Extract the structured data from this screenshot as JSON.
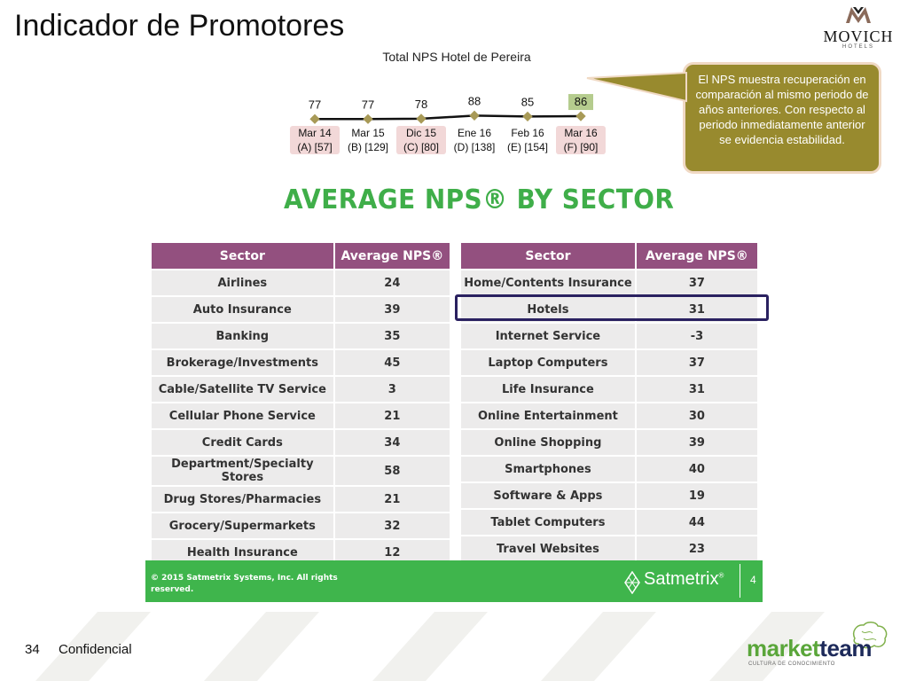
{
  "header": {
    "title": "Indicador de Promotores",
    "logo_text": "MOVICH",
    "logo_sub": "HOTELS"
  },
  "chart_data": {
    "type": "line",
    "title": "Total NPS Hotel de Pereira",
    "categories": [
      "Mar 14 (A) [57]",
      "Mar 15 (B) [129]",
      "Dic 15 (C) [80]",
      "Ene 16 (D) [138]",
      "Feb 16 (E) [154]",
      "Mar 16 (F) [90]"
    ],
    "category_lines": [
      [
        "Mar 14",
        "(A) [57]"
      ],
      [
        "Mar 15",
        "(B) [129]"
      ],
      [
        "Dic 15",
        "(C) [80]"
      ],
      [
        "Ene 16",
        "(D) [138]"
      ],
      [
        "Feb 16",
        "(E) [154]"
      ],
      [
        "Mar 16",
        "(F) [90]"
      ]
    ],
    "highlighted_categories": [
      0,
      2,
      5
    ],
    "values": [
      77,
      77,
      78,
      88,
      85,
      86
    ],
    "highlighted_value_index": 5,
    "ylim": [
      0,
      100
    ],
    "line_color": "#111111",
    "marker_color": "#a89a57",
    "highlight_color": "#b5cc8e"
  },
  "callout": {
    "text": "El NPS muestra recuperación en comparación al mismo periodo de años anteriores. Con respecto al periodo inmediatamente anterior se evidencia estabilidad."
  },
  "sector": {
    "heading": "AVERAGE NPS® BY SECTOR",
    "col_sector": "Sector",
    "col_nps": "Average NPS®",
    "left_rows": [
      {
        "sector": "Airlines",
        "nps": "24"
      },
      {
        "sector": "Auto Insurance",
        "nps": "39"
      },
      {
        "sector": "Banking",
        "nps": "35"
      },
      {
        "sector": "Brokerage/Investments",
        "nps": "45"
      },
      {
        "sector": "Cable/Satellite TV Service",
        "nps": "3"
      },
      {
        "sector": "Cellular Phone Service",
        "nps": "21"
      },
      {
        "sector": "Credit Cards",
        "nps": "34"
      },
      {
        "sector": "Department/Specialty Stores",
        "nps": "58"
      },
      {
        "sector": "Drug Stores/Pharmacies",
        "nps": "21"
      },
      {
        "sector": "Grocery/Supermarkets",
        "nps": "32"
      },
      {
        "sector": "Health Insurance",
        "nps": "12"
      }
    ],
    "right_rows": [
      {
        "sector": "Home/Contents Insurance",
        "nps": "37"
      },
      {
        "sector": "Hotels",
        "nps": "31"
      },
      {
        "sector": "Internet Service",
        "nps": "-3"
      },
      {
        "sector": "Laptop Computers",
        "nps": "37"
      },
      {
        "sector": "Life Insurance",
        "nps": "31"
      },
      {
        "sector": "Online Entertainment",
        "nps": "30"
      },
      {
        "sector": "Online Shopping",
        "nps": "39"
      },
      {
        "sector": "Smartphones",
        "nps": "40"
      },
      {
        "sector": "Software & Apps",
        "nps": "19"
      },
      {
        "sector": "Tablet Computers",
        "nps": "44"
      },
      {
        "sector": "Travel Websites",
        "nps": "23"
      }
    ],
    "highlighted_right_row": 1
  },
  "footer_bar": {
    "copyright_line1": "© 2015 Satmetrix Systems, Inc. All rights",
    "copyright_line2": "reserved.",
    "brand": "Satmetrix",
    "brand_mark": "®",
    "page": "4"
  },
  "footer": {
    "page_number": "34",
    "confidential": "Confidencial",
    "logo_part1": "market",
    "logo_part2": "team",
    "logo_tagline": "CULTURA DE CONOCIMIENTO"
  },
  "colors": {
    "table_header": "#93507f",
    "table_cell": "#ecebeb",
    "heading_green": "#3fae49",
    "footer_green": "#3fb54c",
    "callout_fill": "#988a2e",
    "hotel_outline": "#2a2160"
  }
}
